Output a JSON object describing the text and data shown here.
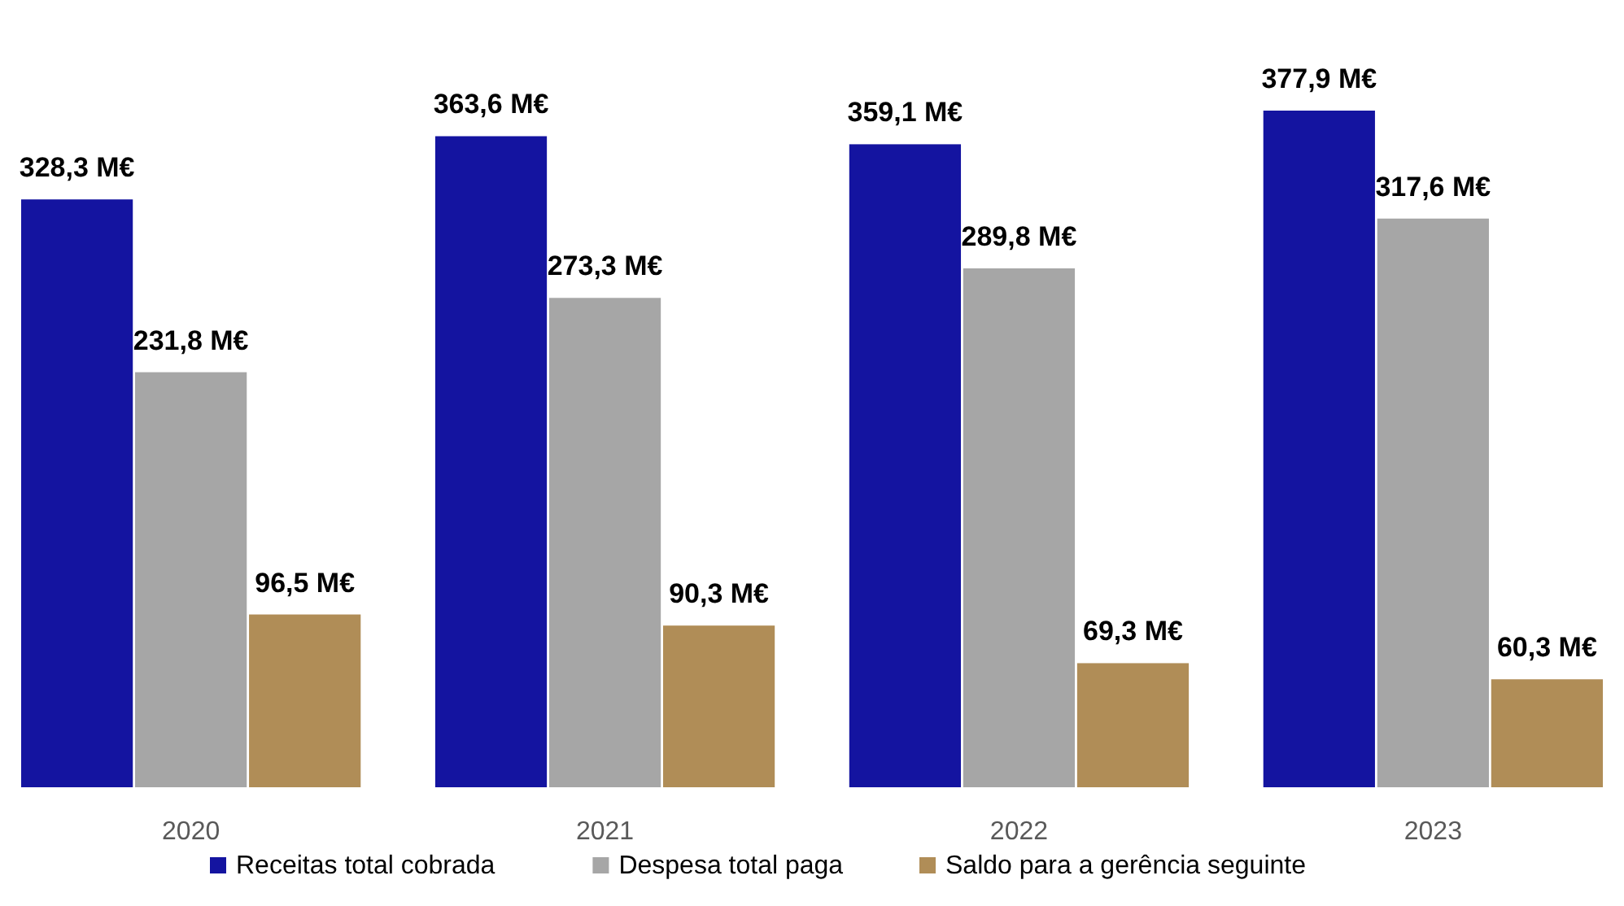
{
  "chart_data": {
    "type": "bar",
    "categories": [
      "2020",
      "2021",
      "2022",
      "2023"
    ],
    "series": [
      {
        "name": "Receitas total cobrada",
        "color": "#1414a0",
        "values": [
          328.3,
          363.6,
          359.1,
          377.9
        ],
        "value_labels": [
          "328,3 M€",
          "363,6 M€",
          "359,1 M€",
          "377,9 M€"
        ]
      },
      {
        "name": "Despesa total paga",
        "color": "#a6a6a6",
        "values": [
          231.8,
          273.3,
          289.8,
          317.6
        ],
        "value_labels": [
          "231,8 M€",
          "273,3 M€",
          "289,8 M€",
          "317,6 M€"
        ]
      },
      {
        "name": "Saldo para a gerência seguinte",
        "color": "#b08d57",
        "values": [
          96.5,
          90.3,
          69.3,
          60.3
        ],
        "value_labels": [
          "96,5 M€",
          "90,3 M€",
          "69,3 M€",
          "60,3 M€"
        ]
      }
    ],
    "legend": "bottom",
    "grid": false
  }
}
